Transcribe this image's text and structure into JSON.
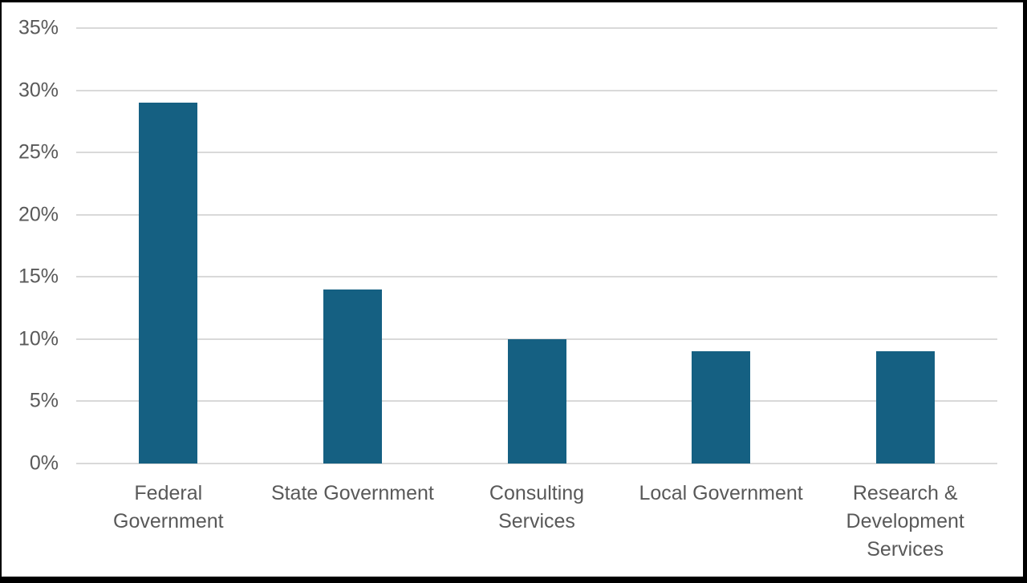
{
  "frame": {
    "background": "#FFFFFF",
    "border_color": "#000000"
  },
  "chart_data": {
    "type": "bar",
    "title": "",
    "xlabel": "",
    "ylabel": "",
    "categories": [
      "Federal Government",
      "State Government",
      "Consulting Services",
      "Local Government",
      "Research & Development Services"
    ],
    "category_label_lines": [
      [
        "Federal",
        "Government"
      ],
      [
        "State Government"
      ],
      [
        "Consulting",
        "Services"
      ],
      [
        "Local Government"
      ],
      [
        "Research &",
        "Development",
        "Services"
      ]
    ],
    "values": [
      29,
      14,
      10,
      9,
      9
    ],
    "unit": "%",
    "ylim": [
      0,
      35
    ],
    "ytick_step": 5,
    "ytick_labels": [
      "0%",
      "5%",
      "10%",
      "15%",
      "20%",
      "25%",
      "30%",
      "35%"
    ],
    "grid": true,
    "legend": false,
    "colors": {
      "bar": "#156082",
      "gridline": "#D9D9D9",
      "axis_label": "#595959"
    }
  }
}
